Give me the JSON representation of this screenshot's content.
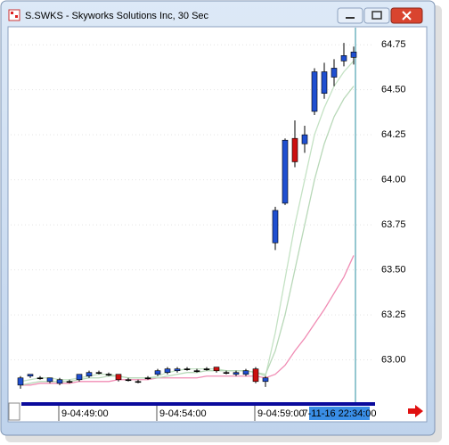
{
  "window_title": "S.SWKS - Skyworks Solutions Inc, 30 Sec",
  "chart_data": {
    "type": "candlestick",
    "categories": [
      null,
      null,
      null,
      null,
      "9-04:49:00",
      null,
      null,
      null,
      null,
      null,
      null,
      null,
      null,
      null,
      "9-04:54:00",
      null,
      null,
      null,
      null,
      null,
      null,
      null,
      null,
      null,
      "9-04:59:00",
      null,
      null,
      null,
      null,
      null,
      null,
      null,
      null,
      null,
      null
    ],
    "cursor_label": "7-11-16 22:34:00",
    "open": [
      62.86,
      62.91,
      62.9,
      62.88,
      62.87,
      62.88,
      62.89,
      62.91,
      62.93,
      62.92,
      62.92,
      62.89,
      62.88,
      62.9,
      62.92,
      62.93,
      62.94,
      62.95,
      62.94,
      62.95,
      62.96,
      62.93,
      62.92,
      62.92,
      62.95,
      62.88,
      63.65,
      63.87,
      64.23,
      64.2,
      64.38,
      64.48,
      64.57,
      64.66,
      64.68
    ],
    "high": [
      62.91,
      62.92,
      62.91,
      62.9,
      62.9,
      62.89,
      62.92,
      62.94,
      62.94,
      62.93,
      62.92,
      62.9,
      62.89,
      62.91,
      62.95,
      62.96,
      62.96,
      62.96,
      62.95,
      62.96,
      62.96,
      62.94,
      62.94,
      62.95,
      62.96,
      62.91,
      63.85,
      64.23,
      64.33,
      64.3,
      64.62,
      64.65,
      64.67,
      64.76,
      64.74
    ],
    "low": [
      62.84,
      62.9,
      62.89,
      62.87,
      62.86,
      62.87,
      62.88,
      62.9,
      62.92,
      62.91,
      62.88,
      62.88,
      62.87,
      62.89,
      62.91,
      62.92,
      62.93,
      62.94,
      62.93,
      62.94,
      62.93,
      62.92,
      62.91,
      62.91,
      62.87,
      62.85,
      63.61,
      63.86,
      64.07,
      64.15,
      64.36,
      64.45,
      64.52,
      64.63,
      64.64
    ],
    "close": [
      62.9,
      62.92,
      62.9,
      62.9,
      62.89,
      62.88,
      62.92,
      62.93,
      62.93,
      62.92,
      62.89,
      62.89,
      62.88,
      62.9,
      62.94,
      62.95,
      62.95,
      62.95,
      62.94,
      62.95,
      62.94,
      62.93,
      62.93,
      62.94,
      62.88,
      62.9,
      63.83,
      64.22,
      64.1,
      64.25,
      64.6,
      64.6,
      64.62,
      64.69,
      64.71
    ],
    "up_color": "#1f4fd0",
    "down_color": "#cc1010",
    "flat_color": "#000000",
    "overlays": [
      {
        "color": "#f08cb4",
        "values": [
          62.86,
          62.86,
          62.87,
          62.87,
          62.87,
          62.87,
          62.88,
          62.88,
          62.88,
          62.88,
          62.89,
          62.89,
          62.89,
          62.89,
          62.9,
          62.9,
          62.9,
          62.9,
          62.9,
          62.91,
          62.91,
          62.91,
          62.91,
          62.91,
          62.91,
          62.9,
          62.92,
          62.97,
          63.05,
          63.12,
          63.2,
          63.28,
          63.37,
          63.46,
          63.58
        ]
      },
      {
        "color": "#c4e2c4",
        "values": [
          62.88,
          62.89,
          62.9,
          62.9,
          62.89,
          62.89,
          62.9,
          62.91,
          62.92,
          62.92,
          62.91,
          62.9,
          62.9,
          62.9,
          62.91,
          62.93,
          62.94,
          62.95,
          62.95,
          62.95,
          62.95,
          62.94,
          62.94,
          62.94,
          62.93,
          62.91,
          63.15,
          63.45,
          63.75,
          64.0,
          64.25,
          64.4,
          64.52,
          64.6,
          64.66
        ]
      },
      {
        "color": "#b8d8b8",
        "values": [
          62.86,
          62.87,
          62.88,
          62.88,
          62.88,
          62.88,
          62.89,
          62.9,
          62.9,
          62.91,
          62.91,
          62.9,
          62.9,
          62.9,
          62.9,
          62.91,
          62.92,
          62.93,
          62.93,
          62.94,
          62.94,
          62.94,
          62.94,
          62.94,
          62.93,
          62.92,
          63.05,
          63.25,
          63.5,
          63.75,
          64.0,
          64.2,
          64.35,
          64.45,
          64.52
        ]
      }
    ],
    "ylim": [
      62.77,
      64.85
    ],
    "yticks": [
      {
        "value": 63,
        "label": "63.00"
      },
      {
        "value": 63.25,
        "label": "63.25"
      },
      {
        "value": 63.5,
        "label": "63.50"
      },
      {
        "value": 63.75,
        "label": "63.75"
      },
      {
        "value": 64,
        "label": "64.00"
      },
      {
        "value": 64.25,
        "label": "64.25"
      },
      {
        "value": 64.5,
        "label": "64.50"
      },
      {
        "value": 64.75,
        "label": "64.75"
      }
    ],
    "grid": true
  }
}
